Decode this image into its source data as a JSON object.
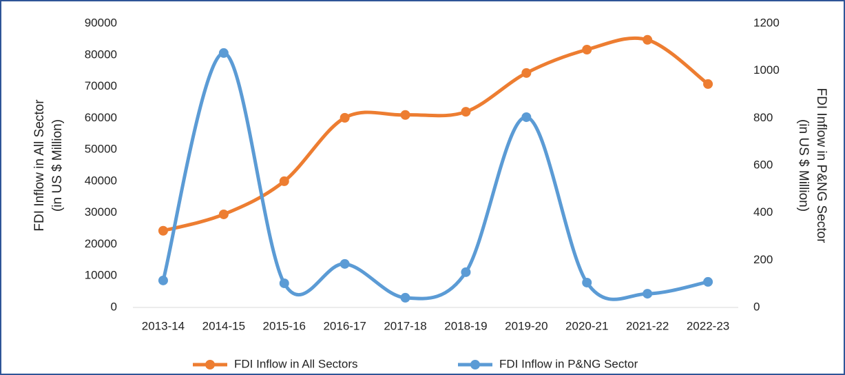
{
  "chart_data": {
    "type": "line",
    "categories": [
      "2013-14",
      "2014-15",
      "2015-16",
      "2016-17",
      "2017-18",
      "2018-19",
      "2019-20",
      "2020-21",
      "2021-22",
      "2022-23"
    ],
    "series": [
      {
        "name": "FDI Inflow in All Sectors",
        "color": "#ed7d31",
        "axis": "y",
        "values": [
          24300,
          29500,
          40000,
          60100,
          61000,
          62000,
          74300,
          81700,
          84800,
          70800
        ]
      },
      {
        "name": "FDI Inflow in P&NG  Sector",
        "color": "#5b9bd5",
        "axis": "y2",
        "values": [
          114,
          1075,
          102,
          184,
          41,
          149,
          804,
          105,
          58,
          108
        ]
      }
    ],
    "y_label": [
      "FDI Inflow in All Sector",
      "(in US $  Million)"
    ],
    "y2_label": [
      "FDI Inflow in P&NG  Sector",
      "(in US $  Million)"
    ],
    "ylim": [
      0,
      90000
    ],
    "yticks": [
      0,
      10000,
      20000,
      30000,
      40000,
      50000,
      60000,
      70000,
      80000,
      90000
    ],
    "y2lim": [
      0,
      1200
    ],
    "y2ticks": [
      0,
      200,
      400,
      600,
      800,
      1000,
      1200
    ],
    "grid": false,
    "smooth": true,
    "legend": "bottom"
  }
}
